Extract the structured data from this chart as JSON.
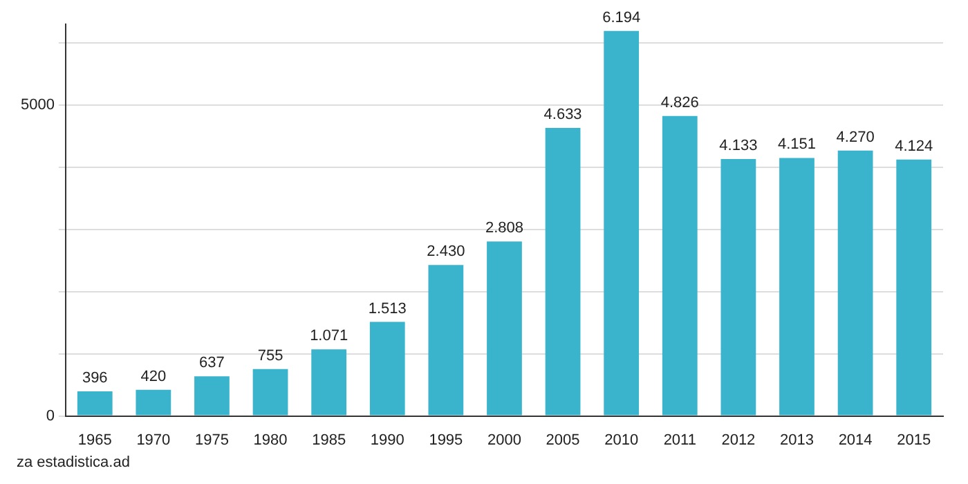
{
  "chart_data": {
    "type": "bar",
    "categories": [
      "1965",
      "1970",
      "1975",
      "1980",
      "1985",
      "1990",
      "1995",
      "2000",
      "2005",
      "2010",
      "2011",
      "2012",
      "2013",
      "2014",
      "2015"
    ],
    "values": [
      396,
      420,
      637,
      755,
      1071,
      1513,
      2430,
      2808,
      4633,
      6194,
      4826,
      4133,
      4151,
      4270,
      4124
    ],
    "value_labels": [
      "396",
      "420",
      "637",
      "755",
      "1.071",
      "1.513",
      "2.430",
      "2.808",
      "4.633",
      "6.194",
      "4.826",
      "4.133",
      "4.151",
      "4.270",
      "4.124"
    ],
    "color": "#3ab4cc",
    "ylim": [
      0,
      6300
    ],
    "yticks": [
      0,
      {
        "value": 1000,
        "label": null
      },
      {
        "value": 2000,
        "label": null
      },
      {
        "value": 3000,
        "label": null
      },
      {
        "value": 4000,
        "label": null
      },
      5000,
      {
        "value": 6000,
        "label": null
      }
    ],
    "grid": "y",
    "legend": false,
    "annotations": [
      "za estadistica.ad"
    ]
  }
}
